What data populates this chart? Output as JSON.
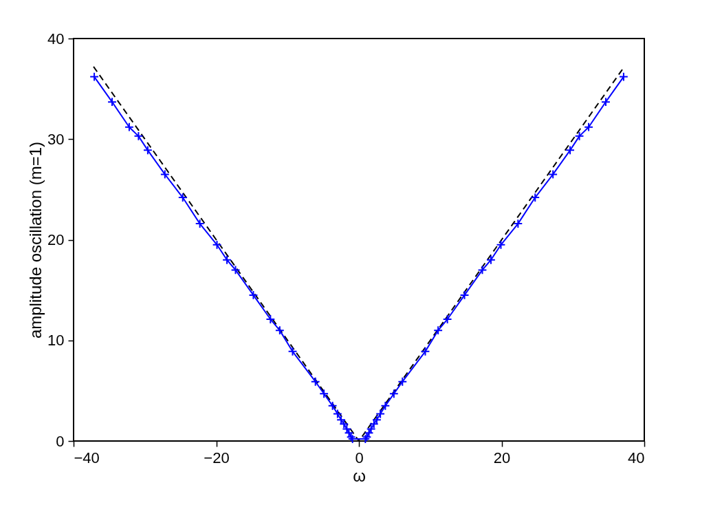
{
  "chart_data": {
    "type": "line",
    "xlabel": "ω",
    "ylabel": "amplitude oscillation (m=1)",
    "xlim": [
      -40,
      40
    ],
    "xticks": [
      -40,
      -20,
      0,
      20,
      40
    ],
    "ylim": [
      0,
      40
    ],
    "yticks": [
      0,
      10,
      20,
      30,
      40
    ],
    "grid": false,
    "series": [
      {
        "color": "#000000",
        "line_style": "dashed",
        "marker": "none",
        "x": [
          -37.2,
          0,
          37.2
        ],
        "values": [
          37.2,
          0,
          37.2
        ]
      },
      {
        "color": "#0000ff",
        "line_style": "solid",
        "marker": "cross",
        "x": [
          -37.1,
          -34.6,
          -32.2,
          -30.9,
          -29.6,
          -27.2,
          -24.7,
          -22.3,
          -19.9,
          -18.5,
          -17.3,
          -14.8,
          -12.4,
          -11.1,
          -9.3,
          -6.1,
          -4.9,
          -3.7,
          -3.0,
          -2.5,
          -2.1,
          -1.7,
          -1.4,
          -1.1,
          -0.9,
          0.9,
          1.1,
          1.4,
          1.7,
          2.1,
          2.5,
          3.0,
          3.7,
          4.9,
          6.1,
          9.3,
          11.1,
          12.4,
          14.8,
          17.3,
          18.5,
          19.9,
          22.3,
          24.7,
          27.2,
          29.6,
          30.9,
          32.2,
          34.6,
          37.1
        ],
        "values": [
          36.2,
          33.7,
          31.2,
          30.3,
          28.9,
          26.5,
          24.2,
          21.6,
          19.5,
          18.0,
          17.0,
          14.5,
          12.1,
          11.0,
          8.9,
          5.9,
          4.7,
          3.5,
          2.7,
          2.1,
          1.7,
          1.2,
          0.8,
          0.4,
          0.2,
          0.2,
          0.4,
          0.8,
          1.2,
          1.7,
          2.1,
          2.7,
          3.5,
          4.7,
          5.9,
          8.9,
          11.0,
          12.1,
          14.5,
          17.0,
          18.0,
          19.5,
          21.6,
          24.2,
          26.5,
          28.9,
          30.3,
          31.2,
          33.7,
          36.2
        ]
      }
    ]
  }
}
